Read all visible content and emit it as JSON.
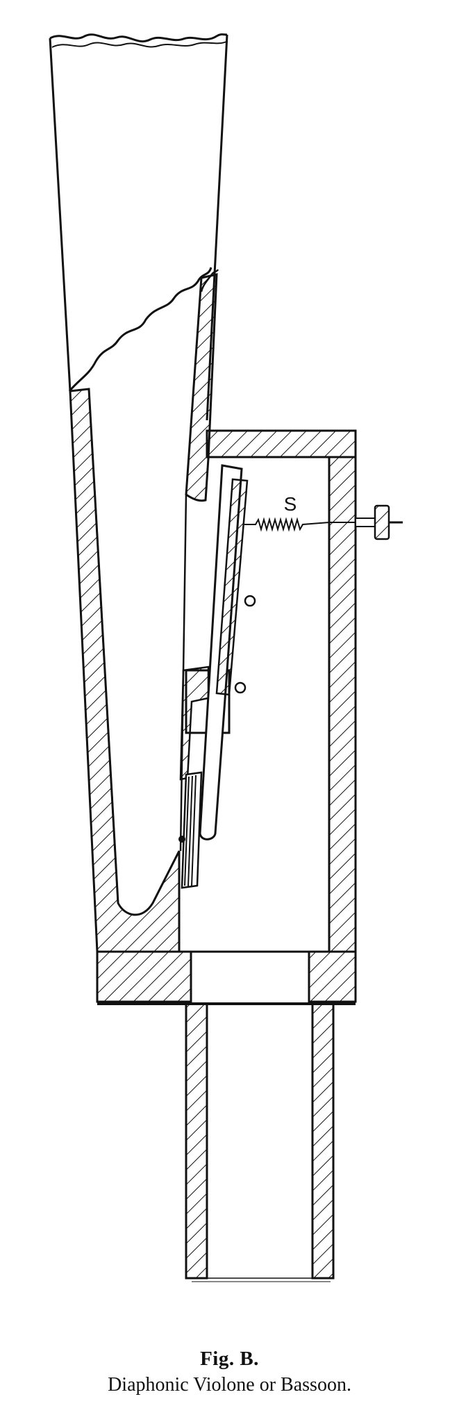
{
  "figure": {
    "label": "Fig. B.",
    "title": "Diaphonic Violone or Bassoon.",
    "spring_label": "S"
  },
  "colors": {
    "ink": "#111111",
    "paper": "#ffffff"
  }
}
